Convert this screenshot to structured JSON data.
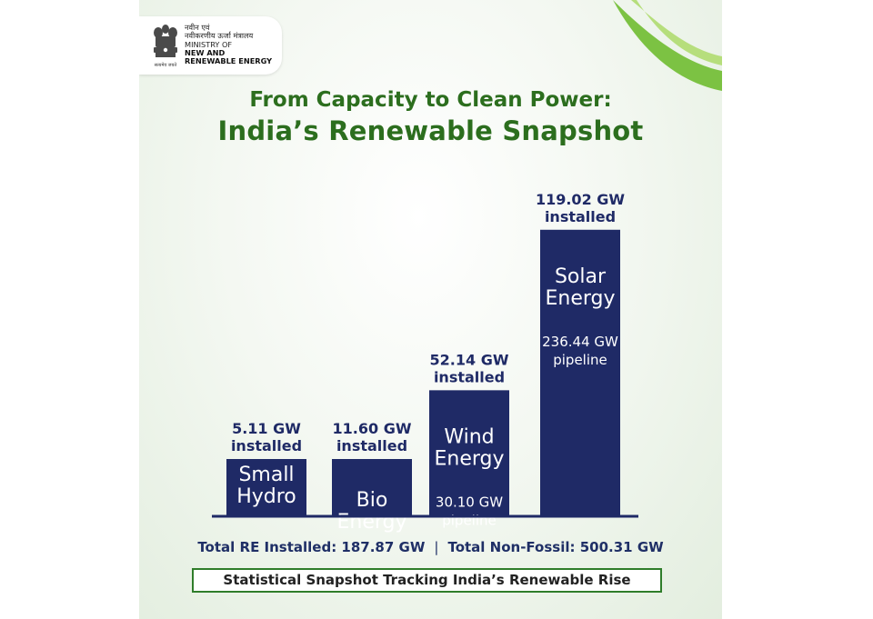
{
  "logo": {
    "hindi_line1": "नवीन एवं",
    "hindi_line2": "नवीकरणीय ऊर्जा मंत्रालय",
    "english_line1": "MINISTRY OF",
    "english_line2": "NEW AND",
    "english_line3": "RENEWABLE ENERGY",
    "motto": "सत्यमेव जयते"
  },
  "header": {
    "title_line1": "From Capacity to Clean Power:",
    "title_line2": "India’s Renewable Snapshot"
  },
  "colors": {
    "bar": "#1f2a66",
    "title": "#2c6e1e",
    "accent_green": "#2f7d2a"
  },
  "chart_data": {
    "type": "bar",
    "title": "From Capacity to Clean Power: India’s Renewable Snapshot",
    "unit": "GW",
    "ylim": [
      0,
      125
    ],
    "categories": [
      {
        "name_lines": [
          "Small",
          "Hydro"
        ],
        "installed": 5.11,
        "installed_label": "5.11 GW",
        "pipeline": null,
        "pipeline_label": null
      },
      {
        "name_lines": [
          "Bio",
          "Energy"
        ],
        "installed": 11.6,
        "installed_label": "11.60 GW",
        "pipeline": null,
        "pipeline_label": null
      },
      {
        "name_lines": [
          "Wind",
          "Energy"
        ],
        "installed": 52.14,
        "installed_label": "52.14 GW",
        "pipeline": 30.1,
        "pipeline_label": "30.10 GW"
      },
      {
        "name_lines": [
          "Solar",
          "Energy"
        ],
        "installed": 119.02,
        "installed_label": "119.02 GW",
        "pipeline": 236.44,
        "pipeline_label": "236.44 GW"
      }
    ],
    "installed_word": "installed",
    "pipeline_word": "pipeline"
  },
  "summary": {
    "total_re": "Total RE Installed: 187.87 GW",
    "separator": "|",
    "total_non_fossil": "Total Non-Fossil: 500.31 GW"
  },
  "tagline": "Statistical Snapshot Tracking India’s Renewable Rise"
}
